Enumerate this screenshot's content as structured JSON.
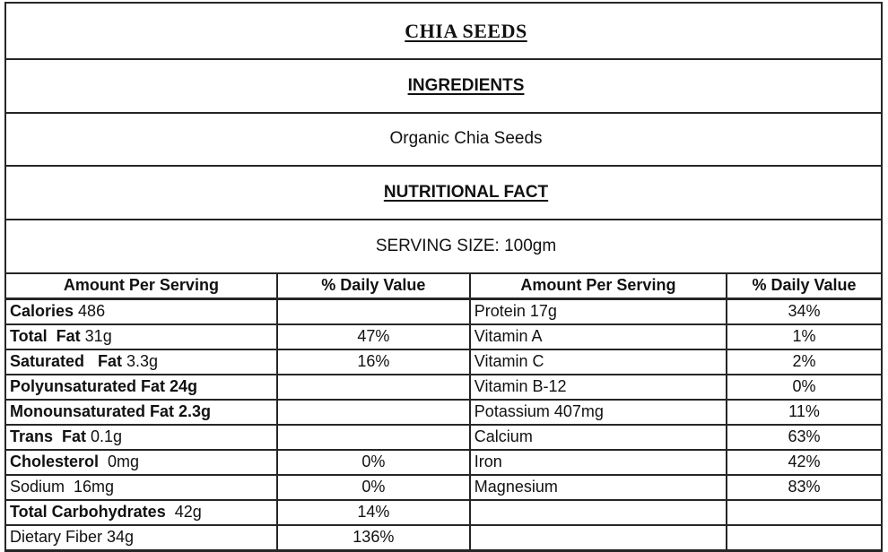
{
  "header": {
    "product_title": "CHIA SEEDS",
    "ingredients_heading": "INGREDIENTS",
    "ingredients_value": "Organic Chia Seeds",
    "nutrition_heading": "NUTRITIONAL FACT",
    "serving_size": "SERVING SIZE: 100gm"
  },
  "table": {
    "headers": [
      "Amount Per Serving",
      "% Daily Value",
      "Amount Per Serving",
      "% Daily Value"
    ],
    "rows": [
      {
        "left": [
          {
            "text": "Calories",
            "bold": true
          },
          {
            "text": " 486",
            "bold": false
          }
        ],
        "left_pct": "",
        "right": [
          {
            "text": "Protein 17g",
            "bold": false
          }
        ],
        "right_pct": "34%"
      },
      {
        "left": [
          {
            "text": "Total  Fat",
            "bold": true
          },
          {
            "text": " 31g",
            "bold": false
          }
        ],
        "left_pct": "47%",
        "right": [
          {
            "text": "Vitamin A",
            "bold": false
          }
        ],
        "right_pct": "1%"
      },
      {
        "left": [
          {
            "text": "Saturated   Fat",
            "bold": true
          },
          {
            "text": " 3.3g",
            "bold": false
          }
        ],
        "left_pct": "16%",
        "right": [
          {
            "text": "Vitamin C",
            "bold": false
          }
        ],
        "right_pct": "2%"
      },
      {
        "left": [
          {
            "text": "Polyunsaturated Fat 24g",
            "bold": true
          }
        ],
        "left_pct": "",
        "right": [
          {
            "text": "Vitamin B-12",
            "bold": false
          }
        ],
        "right_pct": "0%"
      },
      {
        "left": [
          {
            "text": "Monounsaturated Fat 2.3g",
            "bold": true
          }
        ],
        "left_pct": "",
        "right": [
          {
            "text": "Potassium 407mg",
            "bold": false
          }
        ],
        "right_pct": "11%"
      },
      {
        "left": [
          {
            "text": "Trans  Fat",
            "bold": true
          },
          {
            "text": " 0.1g",
            "bold": false
          }
        ],
        "left_pct": "",
        "right": [
          {
            "text": "Calcium",
            "bold": false
          }
        ],
        "right_pct": "63%"
      },
      {
        "left": [
          {
            "text": "Cholesterol",
            "bold": true
          },
          {
            "text": "  0mg",
            "bold": false
          }
        ],
        "left_pct": "0%",
        "right": [
          {
            "text": "Iron",
            "bold": false
          }
        ],
        "right_pct": "42%"
      },
      {
        "left": [
          {
            "text": "Sodium  16mg",
            "bold": false
          }
        ],
        "left_pct": "0%",
        "right": [
          {
            "text": "Magnesium",
            "bold": false
          }
        ],
        "right_pct": "83%"
      },
      {
        "left": [
          {
            "text": "Total Carbohydrates",
            "bold": true
          },
          {
            "text": "  42g",
            "bold": false
          }
        ],
        "left_pct": "14%",
        "right": [],
        "right_pct": ""
      },
      {
        "left": [
          {
            "text": "Dietary Fiber 34g",
            "bold": false
          }
        ],
        "left_pct": "136%",
        "right": [],
        "right_pct": ""
      }
    ]
  },
  "colors": {
    "border": "#262626",
    "text": "#111111",
    "background": "#ffffff"
  }
}
